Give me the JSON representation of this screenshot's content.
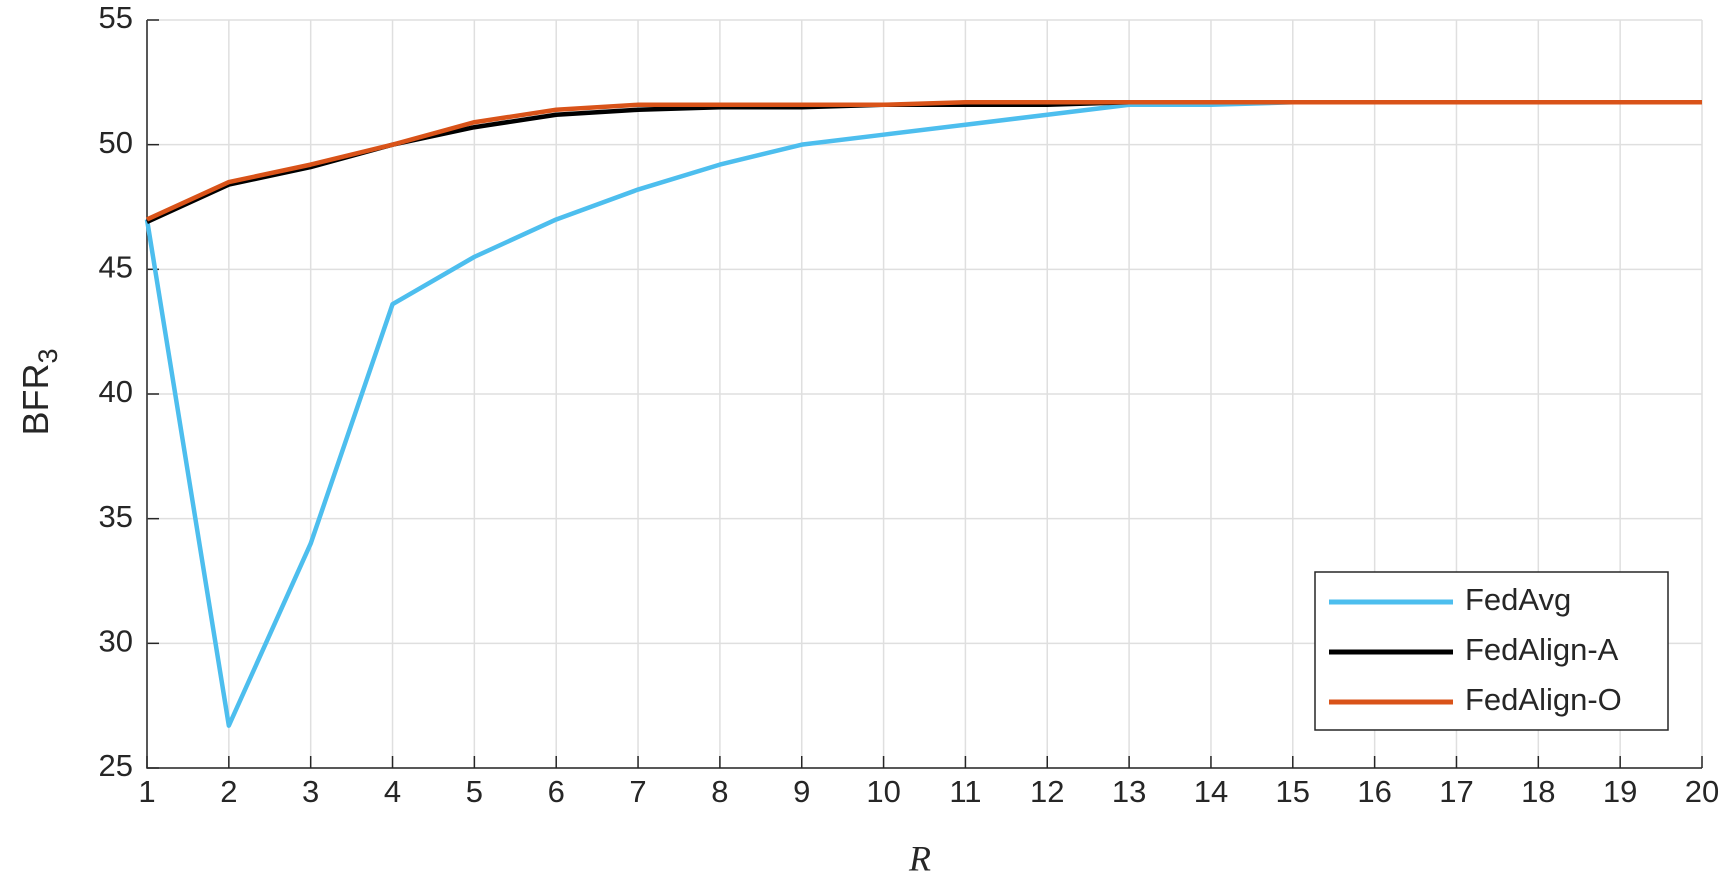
{
  "chart_data": {
    "type": "line",
    "xlabel": "R",
    "ylabel": {
      "text": "BFR",
      "subscript": "3"
    },
    "x": [
      1,
      2,
      3,
      4,
      5,
      6,
      7,
      8,
      9,
      10,
      11,
      12,
      13,
      14,
      15,
      16,
      17,
      18,
      19,
      20
    ],
    "series": [
      {
        "name": "FedAvg",
        "color": "#4DBEEE",
        "values": [
          47,
          26.7,
          34,
          43.6,
          45.5,
          47,
          48.2,
          49.2,
          50,
          50.4,
          50.8,
          51.2,
          51.6,
          51.6,
          51.7,
          51.7,
          51.7,
          51.7,
          51.7,
          51.7
        ]
      },
      {
        "name": "FedAlign-A",
        "color": "#000000",
        "values": [
          46.9,
          48.4,
          49.1,
          50,
          50.7,
          51.2,
          51.4,
          51.5,
          51.5,
          51.6,
          51.6,
          51.6,
          51.7,
          51.7,
          51.7,
          51.7,
          51.7,
          51.7,
          51.7,
          51.7
        ]
      },
      {
        "name": "FedAlign-O",
        "color": "#D95319",
        "values": [
          47,
          48.5,
          49.2,
          50,
          50.9,
          51.4,
          51.6,
          51.6,
          51.6,
          51.6,
          51.7,
          51.7,
          51.7,
          51.7,
          51.7,
          51.7,
          51.7,
          51.7,
          51.7,
          51.7
        ]
      }
    ],
    "xlim": [
      1,
      20
    ],
    "xticks": [
      1,
      2,
      3,
      4,
      5,
      6,
      7,
      8,
      9,
      10,
      11,
      12,
      13,
      14,
      15,
      16,
      17,
      18,
      19,
      20
    ],
    "ylim": [
      25,
      55
    ],
    "yticks": [
      25,
      30,
      35,
      40,
      45,
      50,
      55
    ],
    "grid": true,
    "legend": "lower right"
  }
}
